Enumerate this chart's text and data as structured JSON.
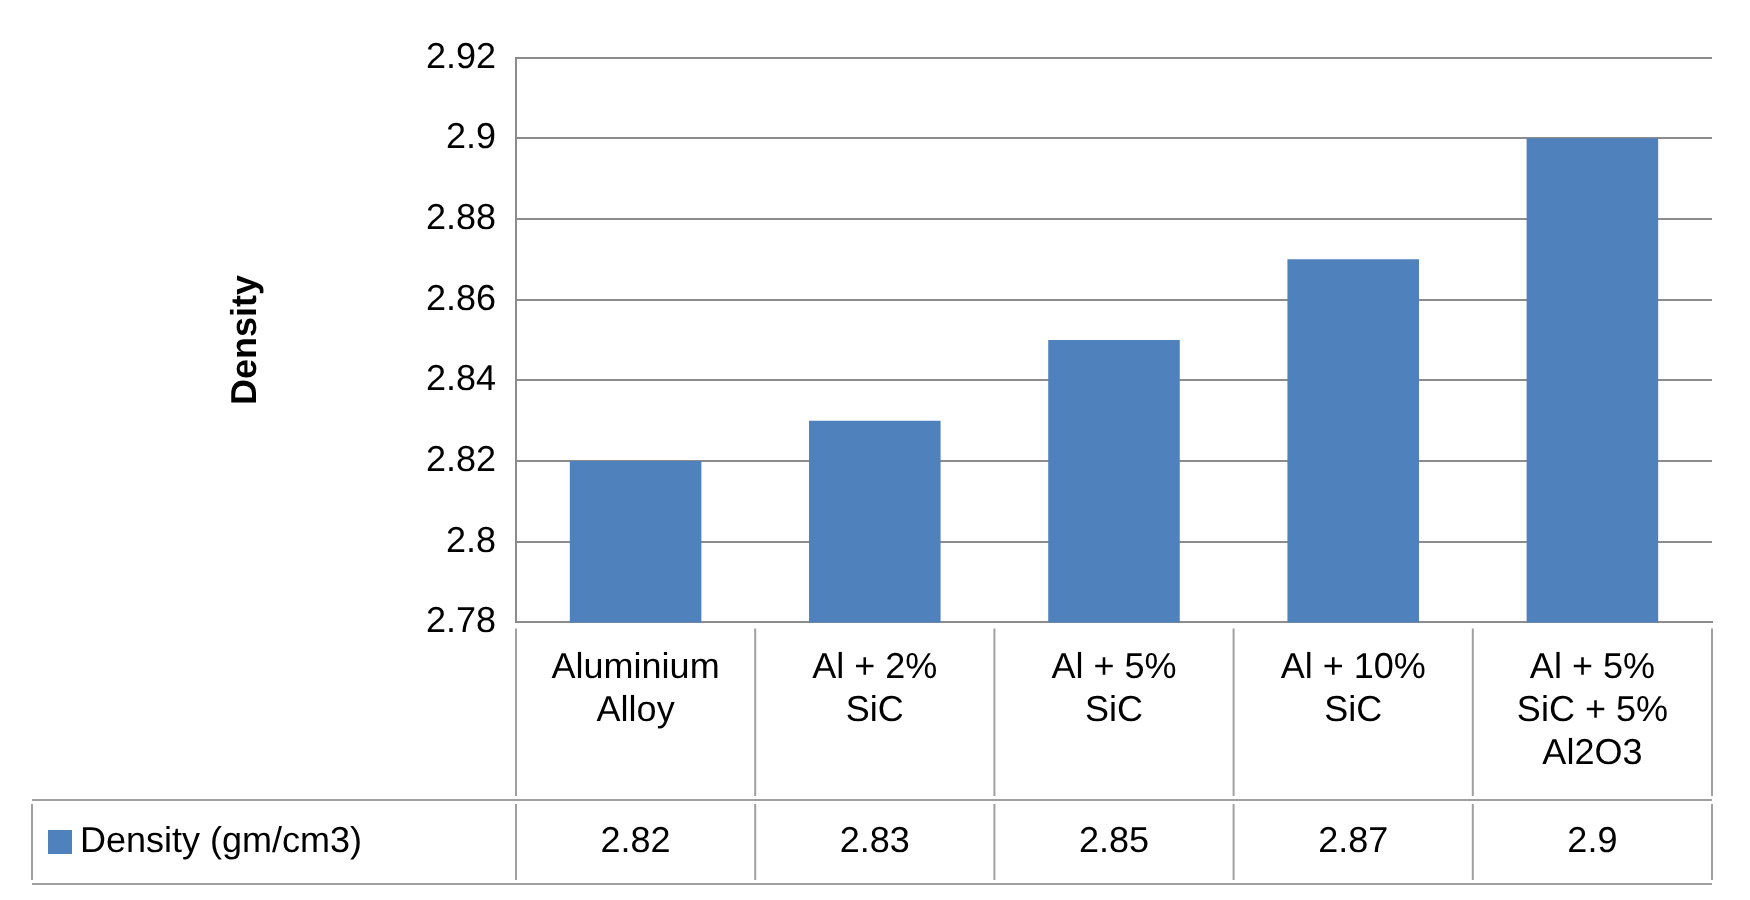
{
  "chart_data": {
    "type": "bar",
    "ylabel": "Density",
    "categories": [
      "Aluminium Alloy",
      "Al + 2% SiC",
      "Al + 5% SiC",
      "Al + 10% SiC",
      "Al + 5% SiC + 5% Al2O3"
    ],
    "series": [
      {
        "name": "Density (gm/cm3)",
        "color": "#4f81bd",
        "values": [
          2.82,
          2.83,
          2.85,
          2.87,
          2.9
        ]
      }
    ],
    "ylim": [
      2.78,
      2.92
    ],
    "yticks": [
      2.78,
      2.8,
      2.82,
      2.84,
      2.86,
      2.88,
      2.9,
      2.92
    ],
    "grid": "y",
    "data_labels": true,
    "legend": "bottom"
  }
}
